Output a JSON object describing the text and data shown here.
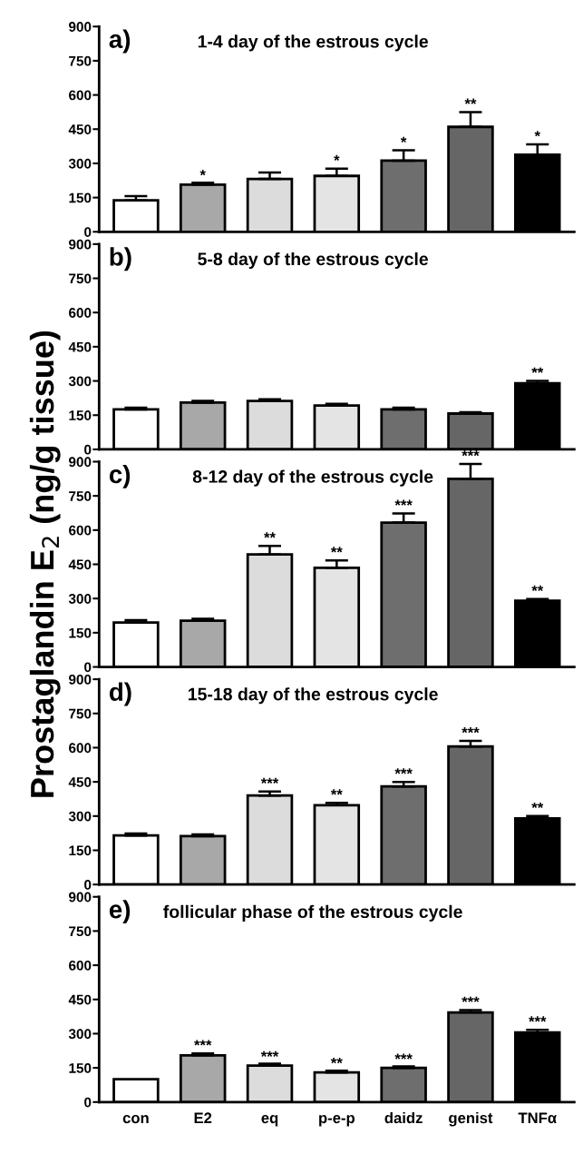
{
  "chart_data": [
    {
      "type": "bar",
      "title": "1-4 day of the estrous cycle",
      "categories": [
        "con",
        "E2",
        "eq",
        "p-e-p",
        "daidz",
        "genist",
        "TNFα"
      ],
      "colors": [
        "#ffffff",
        "#a8a8a8",
        "#dcdcdc",
        "#e4e4e4",
        "#6e6e6e",
        "#666666",
        "#000000"
      ],
      "values": [
        138,
        207,
        232,
        245,
        312,
        460,
        338
      ],
      "errors": [
        18,
        8,
        28,
        32,
        45,
        65,
        45
      ],
      "ylim": [
        0,
        900
      ],
      "yticks": [
        0,
        150,
        300,
        450,
        600,
        750,
        900
      ],
      "tick_labels": "y",
      "annotations": [
        "a)",
        {
          "text": "*",
          "x": "E2",
          "y": 212
        },
        {
          "text": "*",
          "x": "p-e-p",
          "y": 277
        },
        {
          "text": "*",
          "x": "daidz",
          "y": 357
        },
        {
          "text": "**",
          "x": "genist",
          "y": 525
        },
        {
          "text": "*",
          "x": "TNFα",
          "y": 383
        }
      ]
    },
    {
      "type": "bar",
      "title": "5-8 day of the estrous cycle",
      "categories": [
        "con",
        "E2",
        "eq",
        "p-e-p",
        "daidz",
        "genist",
        "TNFα"
      ],
      "colors": [
        "#ffffff",
        "#a8a8a8",
        "#dcdcdc",
        "#e4e4e4",
        "#6e6e6e",
        "#666666",
        "#000000"
      ],
      "values": [
        175,
        205,
        212,
        192,
        175,
        157,
        290
      ],
      "errors": [
        8,
        8,
        8,
        8,
        8,
        6,
        10
      ],
      "ylim": [
        0,
        900
      ],
      "yticks": [
        0,
        150,
        300,
        450,
        600,
        750,
        900
      ],
      "tick_labels": "y",
      "annotations": [
        "b)",
        {
          "text": "**",
          "x": "TNFα",
          "y": 300
        }
      ]
    },
    {
      "type": "bar",
      "title": "8-12 day of the estrous cycle",
      "ylabel": "Prostaglandin E$_{2}$ (ng/g tissue)",
      "categories": [
        "con",
        "E2",
        "eq",
        "p-e-p",
        "daidz",
        "genist",
        "TNFα"
      ],
      "colors": [
        "#ffffff",
        "#a8a8a8",
        "#dcdcdc",
        "#e4e4e4",
        "#6e6e6e",
        "#666666",
        "#000000"
      ],
      "values": [
        195,
        203,
        493,
        435,
        633,
        825,
        290
      ],
      "errors": [
        10,
        8,
        38,
        32,
        40,
        65,
        8
      ],
      "ylim": [
        0,
        900
      ],
      "yticks": [
        0,
        150,
        300,
        450,
        600,
        750,
        900
      ],
      "tick_labels": "y",
      "annotations": [
        "c)",
        {
          "text": "**",
          "x": "eq",
          "y": 531
        },
        {
          "text": "**",
          "x": "p-e-p",
          "y": 467
        },
        {
          "text": "***",
          "x": "daidz",
          "y": 673
        },
        {
          "text": "***",
          "x": "genist",
          "y": 890
        },
        {
          "text": "**",
          "x": "TNFα",
          "y": 298
        }
      ]
    },
    {
      "type": "bar",
      "title": "15-18 day of the estrous cycle",
      "categories": [
        "con",
        "E2",
        "eq",
        "p-e-p",
        "daidz",
        "genist",
        "TNFα"
      ],
      "colors": [
        "#ffffff",
        "#a8a8a8",
        "#dcdcdc",
        "#e4e4e4",
        "#6e6e6e",
        "#666666",
        "#000000"
      ],
      "values": [
        215,
        212,
        390,
        348,
        430,
        605,
        290
      ],
      "errors": [
        9,
        8,
        18,
        10,
        20,
        25,
        10
      ],
      "ylim": [
        0,
        900
      ],
      "yticks": [
        0,
        150,
        300,
        450,
        600,
        750,
        900
      ],
      "tick_labels": "y",
      "annotations": [
        "d)",
        {
          "text": "***",
          "x": "eq",
          "y": 408
        },
        {
          "text": "**",
          "x": "p-e-p",
          "y": 358
        },
        {
          "text": "***",
          "x": "daidz",
          "y": 450
        },
        {
          "text": "***",
          "x": "genist",
          "y": 630
        },
        {
          "text": "**",
          "x": "TNFα",
          "y": 300
        }
      ]
    },
    {
      "type": "bar",
      "title": "follicular phase of the estrous cycle",
      "categories": [
        "con",
        "E2",
        "eq",
        "p-e-p",
        "daidz",
        "genist",
        "TNFα"
      ],
      "colors": [
        "#ffffff",
        "#a8a8a8",
        "#dcdcdc",
        "#e4e4e4",
        "#6e6e6e",
        "#666666",
        "#000000"
      ],
      "values": [
        100,
        205,
        160,
        130,
        150,
        393,
        305
      ],
      "errors": [
        null,
        8,
        8,
        8,
        6,
        10,
        12
      ],
      "ylim": [
        0,
        900
      ],
      "yticks": [
        0,
        150,
        300,
        450,
        600,
        750,
        900
      ],
      "annotations": [
        "e)",
        {
          "text": "***",
          "x": "E2",
          "y": 213
        },
        {
          "text": "***",
          "x": "eq",
          "y": 164
        },
        {
          "text": "**",
          "x": "p-e-p",
          "y": 135
        },
        {
          "text": "***",
          "x": "daidz",
          "y": 153
        },
        {
          "text": "***",
          "x": "genist",
          "y": 403
        },
        {
          "text": "***",
          "x": "TNFα",
          "y": 317
        }
      ]
    }
  ]
}
